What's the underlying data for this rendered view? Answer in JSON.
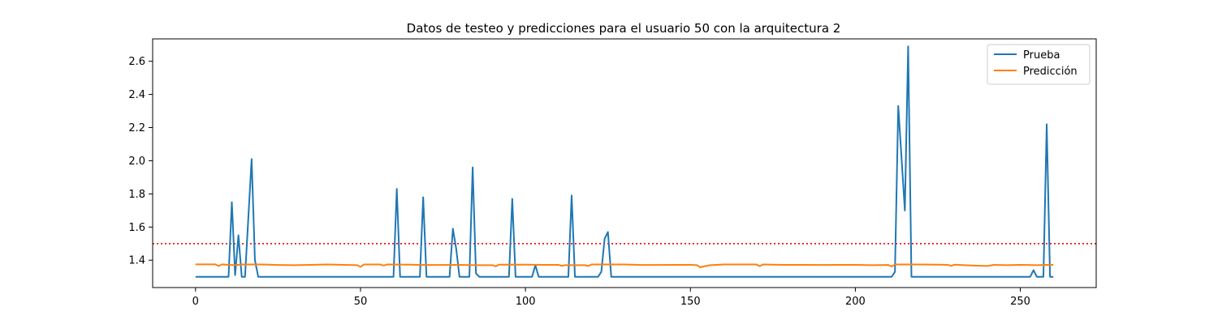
{
  "chart_data": {
    "type": "line",
    "title": "Datos de testeo y predicciones para el usuario 50 con la arquitectura 2",
    "xlabel": "",
    "ylabel": "",
    "xlim": [
      -13,
      273
    ],
    "ylim": [
      1.235,
      2.735
    ],
    "xticks": [
      0,
      50,
      100,
      150,
      200,
      250
    ],
    "yticks": [
      1.4,
      1.6,
      1.8,
      2.0,
      2.2,
      2.4,
      2.6
    ],
    "xtick_labels": [
      "0",
      "50",
      "100",
      "150",
      "200",
      "250"
    ],
    "ytick_labels": [
      "1.4",
      "1.6",
      "1.8",
      "2.0",
      "2.2",
      "2.4",
      "2.6"
    ],
    "grid": false,
    "legend_position": "top-right",
    "reference_line": {
      "y": 1.5,
      "color": "#ff0000",
      "style": "dotted"
    },
    "series": [
      {
        "name": "Prueba",
        "color": "#1f77b4",
        "points": [
          [
            0,
            1.3
          ],
          [
            10,
            1.3
          ],
          [
            11,
            1.75
          ],
          [
            12,
            1.31
          ],
          [
            13,
            1.55
          ],
          [
            14,
            1.3
          ],
          [
            15,
            1.3
          ],
          [
            17,
            2.01
          ],
          [
            18,
            1.4
          ],
          [
            19,
            1.3
          ],
          [
            60,
            1.3
          ],
          [
            61,
            1.83
          ],
          [
            62,
            1.3
          ],
          [
            68,
            1.3
          ],
          [
            69,
            1.78
          ],
          [
            70,
            1.3
          ],
          [
            77,
            1.3
          ],
          [
            78,
            1.59
          ],
          [
            79,
            1.47
          ],
          [
            80,
            1.3
          ],
          [
            83,
            1.3
          ],
          [
            84,
            1.96
          ],
          [
            85,
            1.32
          ],
          [
            86,
            1.3
          ],
          [
            95,
            1.3
          ],
          [
            96,
            1.77
          ],
          [
            97,
            1.3
          ],
          [
            102,
            1.3
          ],
          [
            103,
            1.37
          ],
          [
            104,
            1.3
          ],
          [
            113,
            1.3
          ],
          [
            114,
            1.79
          ],
          [
            115,
            1.3
          ],
          [
            122,
            1.3
          ],
          [
            123,
            1.33
          ],
          [
            124,
            1.53
          ],
          [
            125,
            1.57
          ],
          [
            126,
            1.3
          ],
          [
            211,
            1.3
          ],
          [
            212,
            1.33
          ],
          [
            213,
            2.33
          ],
          [
            215,
            1.7
          ],
          [
            216,
            2.69
          ],
          [
            217,
            1.3
          ],
          [
            253,
            1.3
          ],
          [
            254,
            1.34
          ],
          [
            255,
            1.3
          ],
          [
            257,
            1.3
          ],
          [
            258,
            2.22
          ],
          [
            259,
            1.3
          ],
          [
            260,
            1.3
          ]
        ]
      },
      {
        "name": "Predicción",
        "color": "#ff7f0e",
        "points": [
          [
            0,
            1.375
          ],
          [
            6,
            1.375
          ],
          [
            7,
            1.365
          ],
          [
            8,
            1.375
          ],
          [
            10,
            1.372
          ],
          [
            12,
            1.37
          ],
          [
            14,
            1.374
          ],
          [
            20,
            1.374
          ],
          [
            25,
            1.371
          ],
          [
            30,
            1.37
          ],
          [
            35,
            1.372
          ],
          [
            40,
            1.374
          ],
          [
            45,
            1.372
          ],
          [
            49,
            1.37
          ],
          [
            50,
            1.36
          ],
          [
            51,
            1.374
          ],
          [
            56,
            1.374
          ],
          [
            57,
            1.368
          ],
          [
            58,
            1.374
          ],
          [
            65,
            1.373
          ],
          [
            70,
            1.371
          ],
          [
            75,
            1.371
          ],
          [
            80,
            1.372
          ],
          [
            85,
            1.37
          ],
          [
            90,
            1.37
          ],
          [
            91,
            1.363
          ],
          [
            92,
            1.373
          ],
          [
            100,
            1.373
          ],
          [
            105,
            1.372
          ],
          [
            110,
            1.372
          ],
          [
            111,
            1.366
          ],
          [
            112,
            1.37
          ],
          [
            118,
            1.37
          ],
          [
            119,
            1.365
          ],
          [
            120,
            1.374
          ],
          [
            125,
            1.374
          ],
          [
            130,
            1.374
          ],
          [
            135,
            1.371
          ],
          [
            140,
            1.371
          ],
          [
            145,
            1.372
          ],
          [
            150,
            1.372
          ],
          [
            152,
            1.37
          ],
          [
            153,
            1.357
          ],
          [
            154,
            1.362
          ],
          [
            156,
            1.37
          ],
          [
            160,
            1.374
          ],
          [
            165,
            1.374
          ],
          [
            170,
            1.374
          ],
          [
            171,
            1.364
          ],
          [
            172,
            1.374
          ],
          [
            178,
            1.372
          ],
          [
            185,
            1.372
          ],
          [
            190,
            1.371
          ],
          [
            195,
            1.372
          ],
          [
            200,
            1.372
          ],
          [
            205,
            1.37
          ],
          [
            210,
            1.371
          ],
          [
            211,
            1.362
          ],
          [
            212,
            1.374
          ],
          [
            218,
            1.374
          ],
          [
            225,
            1.373
          ],
          [
            228,
            1.372
          ],
          [
            229,
            1.366
          ],
          [
            230,
            1.373
          ],
          [
            235,
            1.368
          ],
          [
            240,
            1.365
          ],
          [
            242,
            1.372
          ],
          [
            246,
            1.37
          ],
          [
            250,
            1.372
          ],
          [
            255,
            1.37
          ],
          [
            258,
            1.372
          ],
          [
            260,
            1.372
          ]
        ]
      }
    ]
  }
}
